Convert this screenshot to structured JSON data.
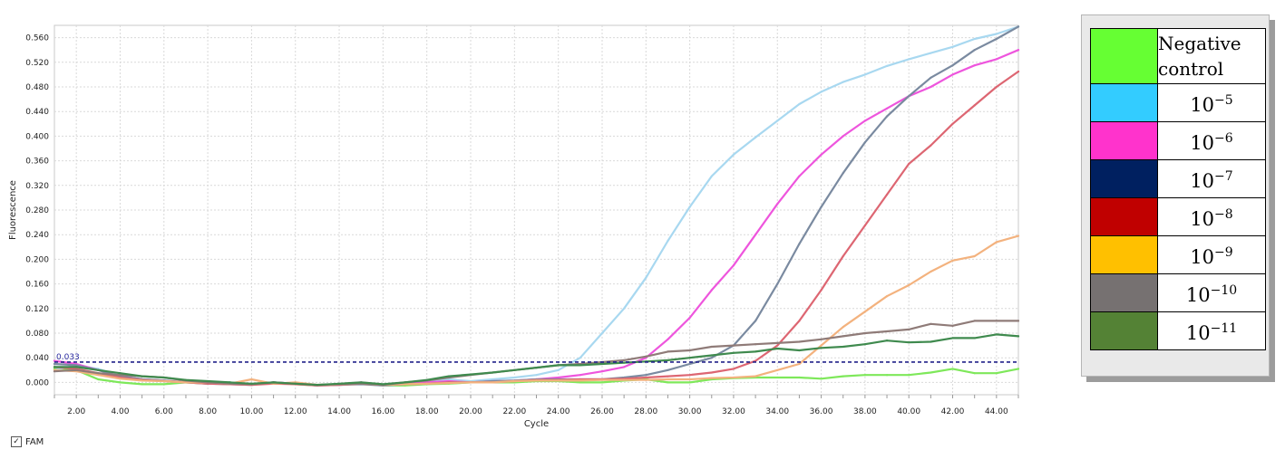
{
  "chart_data": {
    "type": "line",
    "title": "",
    "xlabel": "Cycle",
    "ylabel": "Fluorescence",
    "xlim": [
      1,
      45
    ],
    "ylim": [
      -0.02,
      0.58
    ],
    "x_ticks": [
      "2.00",
      "4.00",
      "6.00",
      "8.00",
      "10.00",
      "12.00",
      "14.00",
      "16.00",
      "18.00",
      "20.00",
      "22.00",
      "24.00",
      "26.00",
      "28.00",
      "30.00",
      "32.00",
      "34.00",
      "36.00",
      "38.00",
      "40.00",
      "42.00",
      "44.00"
    ],
    "y_ticks": [
      "0.000",
      "0.040",
      "0.080",
      "0.120",
      "0.160",
      "0.200",
      "0.240",
      "0.280",
      "0.320",
      "0.360",
      "0.400",
      "0.440",
      "0.480",
      "0.520",
      "0.560"
    ],
    "grid": true,
    "threshold": {
      "value": 0.033,
      "label": "0.033"
    },
    "x": [
      1,
      2,
      3,
      4,
      5,
      6,
      7,
      8,
      9,
      10,
      11,
      12,
      13,
      14,
      15,
      16,
      17,
      18,
      19,
      20,
      21,
      22,
      23,
      24,
      25,
      26,
      27,
      28,
      29,
      30,
      31,
      32,
      33,
      34,
      35,
      36,
      37,
      38,
      39,
      40,
      41,
      42,
      43,
      44,
      45
    ],
    "series": [
      {
        "key": "neg",
        "color": "#7ee85a",
        "values": [
          0.022,
          0.02,
          0.005,
          0.0,
          -0.003,
          -0.003,
          0.0,
          -0.002,
          0.0,
          -0.003,
          0.0,
          -0.003,
          -0.005,
          -0.003,
          -0.002,
          -0.005,
          -0.005,
          -0.003,
          -0.002,
          0.0,
          0.0,
          0.0,
          0.002,
          0.002,
          0.0,
          0.0,
          0.003,
          0.005,
          0.0,
          0.0,
          0.005,
          0.007,
          0.008,
          0.008,
          0.008,
          0.006,
          0.01,
          0.012,
          0.012,
          0.012,
          0.016,
          0.022,
          0.015,
          0.015,
          0.022
        ]
      },
      {
        "key": "e5",
        "color": "#a8d8f0",
        "values": [
          0.02,
          0.028,
          0.022,
          0.01,
          0.005,
          0.002,
          0.0,
          0.0,
          0.0,
          -0.003,
          0.0,
          -0.002,
          -0.005,
          -0.003,
          -0.002,
          -0.005,
          -0.003,
          0.002,
          0.005,
          0.002,
          0.005,
          0.008,
          0.012,
          0.02,
          0.04,
          0.08,
          0.12,
          0.17,
          0.23,
          0.285,
          0.335,
          0.37,
          0.398,
          0.425,
          0.452,
          0.472,
          0.488,
          0.5,
          0.514,
          0.525,
          0.535,
          0.545,
          0.558,
          0.566,
          0.578
        ]
      },
      {
        "key": "e6",
        "color": "#ee55dd",
        "values": [
          0.035,
          0.03,
          0.02,
          0.01,
          0.005,
          0.003,
          0.0,
          0.0,
          -0.002,
          -0.003,
          0.0,
          -0.002,
          -0.005,
          -0.003,
          0.0,
          -0.004,
          -0.003,
          0.0,
          0.002,
          0.0,
          0.002,
          0.003,
          0.005,
          0.008,
          0.012,
          0.018,
          0.025,
          0.04,
          0.07,
          0.105,
          0.15,
          0.19,
          0.24,
          0.29,
          0.335,
          0.37,
          0.4,
          0.425,
          0.445,
          0.465,
          0.48,
          0.5,
          0.515,
          0.525,
          0.54
        ]
      },
      {
        "key": "e7",
        "color": "#7a8aa0",
        "values": [
          0.03,
          0.028,
          0.02,
          0.01,
          0.005,
          0.003,
          0.0,
          -0.002,
          -0.003,
          -0.004,
          0.0,
          -0.002,
          -0.005,
          -0.004,
          -0.003,
          -0.005,
          -0.003,
          -0.002,
          0.0,
          0.0,
          0.002,
          0.003,
          0.005,
          0.005,
          0.005,
          0.005,
          0.008,
          0.012,
          0.02,
          0.03,
          0.04,
          0.06,
          0.1,
          0.16,
          0.225,
          0.285,
          0.34,
          0.39,
          0.432,
          0.465,
          0.495,
          0.515,
          0.54,
          0.558,
          0.578
        ]
      },
      {
        "key": "e8",
        "color": "#dd6672",
        "values": [
          0.025,
          0.022,
          0.015,
          0.008,
          0.004,
          0.002,
          0.0,
          -0.002,
          -0.003,
          -0.004,
          -0.002,
          -0.003,
          -0.005,
          -0.004,
          -0.002,
          -0.004,
          -0.003,
          -0.002,
          0.0,
          0.0,
          0.0,
          0.002,
          0.004,
          0.004,
          0.005,
          0.005,
          0.006,
          0.008,
          0.01,
          0.012,
          0.016,
          0.022,
          0.035,
          0.06,
          0.1,
          0.15,
          0.205,
          0.255,
          0.305,
          0.355,
          0.385,
          0.42,
          0.45,
          0.48,
          0.505
        ]
      },
      {
        "key": "e9",
        "color": "#f3b27e",
        "values": [
          0.02,
          0.018,
          0.012,
          0.006,
          0.003,
          0.002,
          0.0,
          0.0,
          -0.002,
          0.005,
          -0.002,
          0.0,
          -0.004,
          -0.003,
          -0.002,
          -0.004,
          -0.003,
          -0.002,
          -0.001,
          0.0,
          0.0,
          0.002,
          0.003,
          0.003,
          0.003,
          0.004,
          0.004,
          0.004,
          0.005,
          0.005,
          0.007,
          0.008,
          0.01,
          0.02,
          0.03,
          0.06,
          0.09,
          0.115,
          0.14,
          0.158,
          0.18,
          0.198,
          0.205,
          0.228,
          0.238
        ]
      },
      {
        "key": "e10",
        "color": "#8f7b78",
        "values": [
          0.018,
          0.02,
          0.015,
          0.012,
          0.01,
          0.008,
          0.003,
          0.0,
          -0.002,
          -0.003,
          0.0,
          -0.002,
          -0.004,
          -0.003,
          -0.002,
          -0.004,
          0.0,
          0.003,
          0.008,
          0.012,
          0.016,
          0.02,
          0.024,
          0.028,
          0.03,
          0.033,
          0.036,
          0.042,
          0.05,
          0.052,
          0.058,
          0.06,
          0.062,
          0.064,
          0.066,
          0.07,
          0.075,
          0.08,
          0.083,
          0.086,
          0.095,
          0.092,
          0.1,
          0.1,
          0.1
        ]
      },
      {
        "key": "e11",
        "color": "#3f8a4e",
        "values": [
          0.025,
          0.025,
          0.02,
          0.015,
          0.01,
          0.008,
          0.004,
          0.002,
          0.0,
          -0.002,
          0.0,
          -0.002,
          -0.004,
          -0.002,
          0.0,
          -0.003,
          0.0,
          0.004,
          0.01,
          0.013,
          0.016,
          0.02,
          0.024,
          0.028,
          0.028,
          0.03,
          0.032,
          0.034,
          0.036,
          0.04,
          0.044,
          0.048,
          0.05,
          0.055,
          0.052,
          0.056,
          0.058,
          0.062,
          0.068,
          0.065,
          0.066,
          0.072,
          0.072,
          0.078,
          0.075
        ]
      }
    ]
  },
  "legend": {
    "entries": [
      {
        "key": "neg",
        "swatch": "#66ff33",
        "line1": "Negative",
        "line2": "control"
      },
      {
        "key": "e5",
        "swatch": "#33ccff",
        "base": "10",
        "exp": "−5"
      },
      {
        "key": "e6",
        "swatch": "#ff33cc",
        "base": "10",
        "exp": "−6"
      },
      {
        "key": "e7",
        "swatch": "#002060",
        "base": "10",
        "exp": "−7"
      },
      {
        "key": "e8",
        "swatch": "#c00000",
        "base": "10",
        "exp": "−8"
      },
      {
        "key": "e9",
        "swatch": "#ffc000",
        "base": "10",
        "exp": "−9"
      },
      {
        "key": "e10",
        "swatch": "#767171",
        "base": "10",
        "exp": "−10"
      },
      {
        "key": "e11",
        "swatch": "#548235",
        "base": "10",
        "exp": "−11"
      }
    ]
  },
  "channel": {
    "label": "FAM",
    "checked": true,
    "check_glyph": "✓"
  }
}
